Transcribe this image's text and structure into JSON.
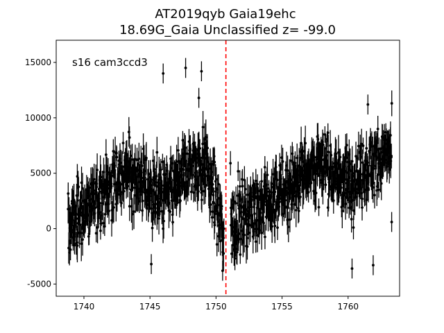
{
  "chart_data": {
    "type": "scatter",
    "title_lines": [
      "AT2019qyb  Gaia19ehc",
      "18.69G_Gaia Unclassified z= -99.0"
    ],
    "annotation": "s16 cam3ccd3",
    "xlabel": "",
    "ylabel": "",
    "xlim": [
      1737.9,
      1763.9
    ],
    "ylim": [
      -6100,
      17000
    ],
    "xticks": [
      1740,
      1745,
      1750,
      1755,
      1760
    ],
    "yticks": [
      -5000,
      0,
      5000,
      10000,
      15000
    ],
    "grid": false,
    "marker_color": "#000000",
    "vline": {
      "x": 1750.75,
      "color": "#ff0000",
      "style": "dashed"
    },
    "segments": [
      {
        "x_start": 1738.8,
        "x_end": 1750.6,
        "trend_x": [
          1738.8,
          1740.5,
          1742.0,
          1743.5,
          1745.0,
          1746.5,
          1748.0,
          1749.2,
          1750.6
        ],
        "trend_y": [
          200,
          2200,
          4000,
          5200,
          3500,
          3000,
          5600,
          6000,
          -600
        ]
      },
      {
        "x_start": 1751.1,
        "x_end": 1763.3,
        "trend_x": [
          1751.1,
          1752.5,
          1754.0,
          1755.5,
          1757.0,
          1758.5,
          1760.0,
          1761.5,
          1763.3
        ],
        "trend_y": [
          300,
          1600,
          2300,
          3800,
          5600,
          5400,
          4200,
          5600,
          6800
        ]
      }
    ],
    "outliers": [
      {
        "x": 1746.0,
        "y": 14000
      },
      {
        "x": 1747.7,
        "y": 14500
      },
      {
        "x": 1748.9,
        "y": 14200
      },
      {
        "x": 1748.7,
        "y": 11800
      },
      {
        "x": 1761.5,
        "y": 11200
      },
      {
        "x": 1760.3,
        "y": -3600
      },
      {
        "x": 1761.9,
        "y": -3300
      },
      {
        "x": 1750.5,
        "y": -3800
      },
      {
        "x": 1763.3,
        "y": 600
      },
      {
        "x": 1745.1,
        "y": -3200
      }
    ],
    "notes": "dense time series of flux points with vertical error bars"
  }
}
